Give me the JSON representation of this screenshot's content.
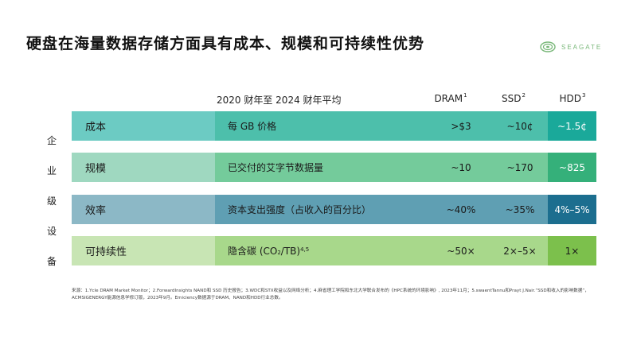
{
  "title": "硬盘在海量数据存储方面具有成本、规模和可持续性优势",
  "logo": {
    "text": "SEAGATE",
    "icon": "seagate-swirl-icon"
  },
  "side_label_chars": [
    "企",
    "业",
    "级",
    "设",
    "备"
  ],
  "columns": {
    "period": "2020 财年至 2024 财年平均",
    "dram": "DRAM",
    "dram_sup": "1",
    "ssd": "SSD",
    "ssd_sup": "2",
    "hdd": "HDD",
    "hdd_sup": "3"
  },
  "rows": [
    {
      "category": "成本",
      "metric": "每 GB 价格",
      "dram": ">$3",
      "ssd": "~10¢",
      "hdd": "~1.5¢"
    },
    {
      "category": "规模",
      "metric": "已交付的艾字节数据量",
      "dram": "~10",
      "ssd": "~170",
      "hdd": "~825"
    },
    {
      "category": "效率",
      "metric": "资本支出强度（占收入的百分比）",
      "dram": "~40%",
      "ssd": "~35%",
      "hdd": "4%–5%"
    },
    {
      "category": "可持续性",
      "metric_prefix": "隐含碳 (CO",
      "metric_sub": "2",
      "metric_suffix": "/TB)",
      "metric_sup": "4,5",
      "dram": "~50×",
      "ssd": "2×–5×",
      "hdd": "1×"
    }
  ],
  "footnote": "来源：1.Ycle DRAM Market Monitor；2.ForwardInsights NAND和 SSD 历史报告；3.WDC和STX收益以及网络分析；4.麻省理工学院和东北大学联合发布的《HPC系统的环境影响》, 2023年11月；5.swaentTannu和Prayt J.Nair.“SSD和收入的影响数据”，ACMSIGENERGY能源信息学修订版，2023年9月。Emiciency数据源于DRAM、NAND和HDD行业总数。",
  "colors": {
    "cost": "#1aa99a",
    "scale": "#35b07a",
    "efficiency": "#1c6e8f",
    "sustainability": "#7cc04c"
  }
}
